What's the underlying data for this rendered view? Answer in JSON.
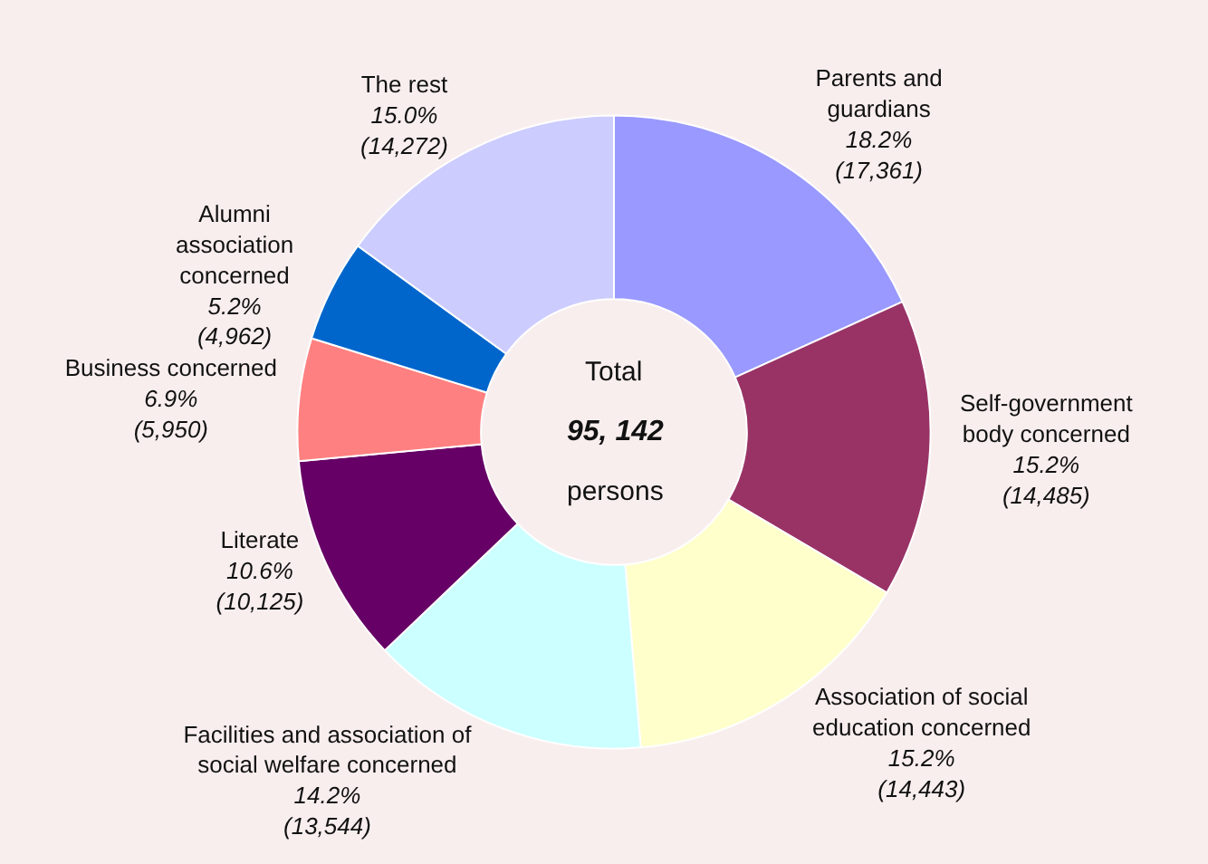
{
  "chart_data": {
    "type": "donut",
    "categories": [
      "Parents and\nguardians",
      "Self-government\nbody concerned",
      "Association of social\neducation concerned",
      "Facilities and association of\nsocial welfare concerned",
      "Literate",
      "Business concerned",
      "Alumni\nassociation\nconcerned",
      "The rest"
    ],
    "values": [
      17361,
      14485,
      14443,
      13544,
      10125,
      5950,
      4962,
      14272
    ],
    "value_labels": [
      "18.2%\n(17,361)",
      "15.2%\n(14,485)",
      "15.2%\n(14,443)",
      "14.2%\n(13,544)",
      "10.6%\n(10,125)",
      "6.9%\n(5,950)",
      "5.2%\n(4,962)",
      "15.0%\n(14,272)"
    ],
    "colors": [
      "#9999ff",
      "#993366",
      "#ffffcc",
      "#ccffff",
      "#660066",
      "#ff8080",
      "#0066cc",
      "#ccccff"
    ],
    "annotations": [
      "Total",
      "95, 142",
      "persons"
    ],
    "legend": false
  }
}
